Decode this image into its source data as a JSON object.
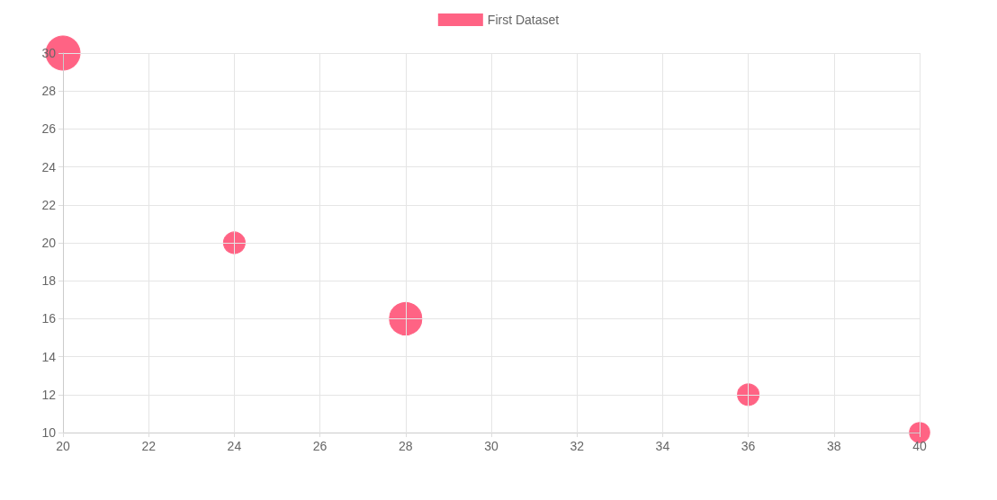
{
  "chart_data": {
    "type": "bubble",
    "x": [
      20,
      24,
      28,
      36,
      40
    ],
    "series": [
      {
        "name": "First Dataset",
        "color": "#ff6384",
        "values": [
          30,
          20,
          16,
          12,
          10
        ],
        "sizes": [
          1,
          0.4,
          0.9,
          0.4,
          0.35
        ]
      }
    ],
    "xlim": [
      20,
      40
    ],
    "xticks": [
      20,
      22,
      24,
      26,
      28,
      30,
      32,
      34,
      36,
      38,
      40
    ],
    "ylim": [
      10,
      30
    ],
    "yticks": [
      10,
      12,
      14,
      16,
      18,
      20,
      22,
      24,
      26,
      28,
      30
    ],
    "grid": true,
    "legend": "top"
  }
}
